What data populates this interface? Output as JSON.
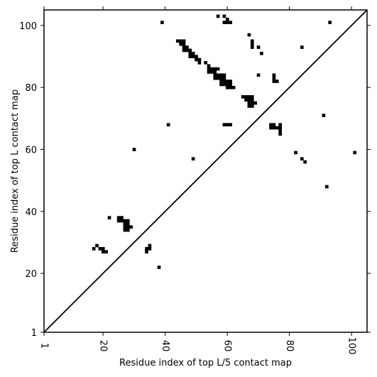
{
  "chart_data": {
    "type": "scatter",
    "title": "",
    "xlabel": "Residue index of top L/5 contact map",
    "ylabel": "Residue index of top L contact map",
    "xlim": [
      1,
      105
    ],
    "ylim": [
      1,
      105
    ],
    "xticks": [
      1,
      20,
      40,
      60,
      80,
      100
    ],
    "yticks": [
      1,
      20,
      40,
      60,
      80,
      100
    ],
    "grid": false,
    "marker": "filled square",
    "marker_color": "#000000",
    "diagonal_line": true,
    "lower_triangle_points": [
      [
        17,
        28
      ],
      [
        18,
        29
      ],
      [
        19,
        28
      ],
      [
        20,
        28
      ],
      [
        20,
        27
      ],
      [
        21,
        27
      ],
      [
        22,
        38
      ],
      [
        25,
        38
      ],
      [
        26,
        38
      ],
      [
        25,
        37
      ],
      [
        26,
        37
      ],
      [
        27,
        37
      ],
      [
        28,
        37
      ],
      [
        27,
        36
      ],
      [
        28,
        36
      ],
      [
        27,
        35
      ],
      [
        28,
        35
      ],
      [
        29,
        35
      ],
      [
        27,
        34
      ],
      [
        28,
        34
      ],
      [
        30,
        60
      ],
      [
        34,
        28
      ],
      [
        35,
        28
      ],
      [
        34,
        27
      ],
      [
        35,
        29
      ],
      [
        38,
        22
      ],
      [
        41,
        68
      ],
      [
        49,
        57
      ],
      [
        82,
        59
      ],
      [
        84,
        57
      ],
      [
        85,
        56
      ],
      [
        92,
        48
      ],
      [
        101,
        59
      ]
    ],
    "upper_triangle_points": [
      [
        39,
        101
      ],
      [
        44,
        95
      ],
      [
        45,
        95
      ],
      [
        46,
        95
      ],
      [
        45,
        94
      ],
      [
        46,
        94
      ],
      [
        46,
        93
      ],
      [
        47,
        93
      ],
      [
        46,
        92
      ],
      [
        47,
        92
      ],
      [
        48,
        92
      ],
      [
        48,
        91
      ],
      [
        49,
        91
      ],
      [
        48,
        90
      ],
      [
        49,
        90
      ],
      [
        50,
        90
      ],
      [
        50,
        89
      ],
      [
        51,
        89
      ],
      [
        51,
        88
      ],
      [
        53,
        88
      ],
      [
        54,
        87
      ],
      [
        54,
        86
      ],
      [
        55,
        86
      ],
      [
        56,
        86
      ],
      [
        57,
        86
      ],
      [
        54,
        85
      ],
      [
        55,
        85
      ],
      [
        56,
        85
      ],
      [
        56,
        84
      ],
      [
        57,
        84
      ],
      [
        58,
        84
      ],
      [
        59,
        84
      ],
      [
        56,
        83
      ],
      [
        57,
        83
      ],
      [
        58,
        83
      ],
      [
        59,
        83
      ],
      [
        58,
        82
      ],
      [
        59,
        82
      ],
      [
        60,
        82
      ],
      [
        61,
        82
      ],
      [
        58,
        81
      ],
      [
        59,
        81
      ],
      [
        60,
        81
      ],
      [
        61,
        81
      ],
      [
        60,
        80
      ],
      [
        61,
        80
      ],
      [
        62,
        80
      ],
      [
        57,
        103
      ],
      [
        59,
        103
      ],
      [
        60,
        102
      ],
      [
        59,
        101
      ],
      [
        60,
        101
      ],
      [
        61,
        101
      ],
      [
        67,
        97
      ],
      [
        68,
        95
      ],
      [
        68,
        94
      ],
      [
        68,
        93
      ],
      [
        70,
        93
      ],
      [
        71,
        91
      ],
      [
        70,
        84
      ],
      [
        65,
        77
      ],
      [
        66,
        77
      ],
      [
        67,
        77
      ],
      [
        68,
        77
      ],
      [
        66,
        76
      ],
      [
        67,
        76
      ],
      [
        68,
        76
      ],
      [
        67,
        75
      ],
      [
        68,
        75
      ],
      [
        69,
        75
      ],
      [
        67,
        74
      ],
      [
        68,
        74
      ],
      [
        75,
        84
      ],
      [
        75,
        83
      ],
      [
        75,
        82
      ],
      [
        76,
        82
      ],
      [
        74,
        68
      ],
      [
        75,
        68
      ],
      [
        77,
        68
      ],
      [
        74,
        67
      ],
      [
        75,
        67
      ],
      [
        76,
        67
      ],
      [
        77,
        67
      ],
      [
        77,
        66
      ],
      [
        77,
        65
      ],
      [
        59,
        68
      ],
      [
        60,
        68
      ],
      [
        61,
        68
      ],
      [
        84,
        93
      ],
      [
        91,
        71
      ],
      [
        93,
        101
      ]
    ]
  }
}
